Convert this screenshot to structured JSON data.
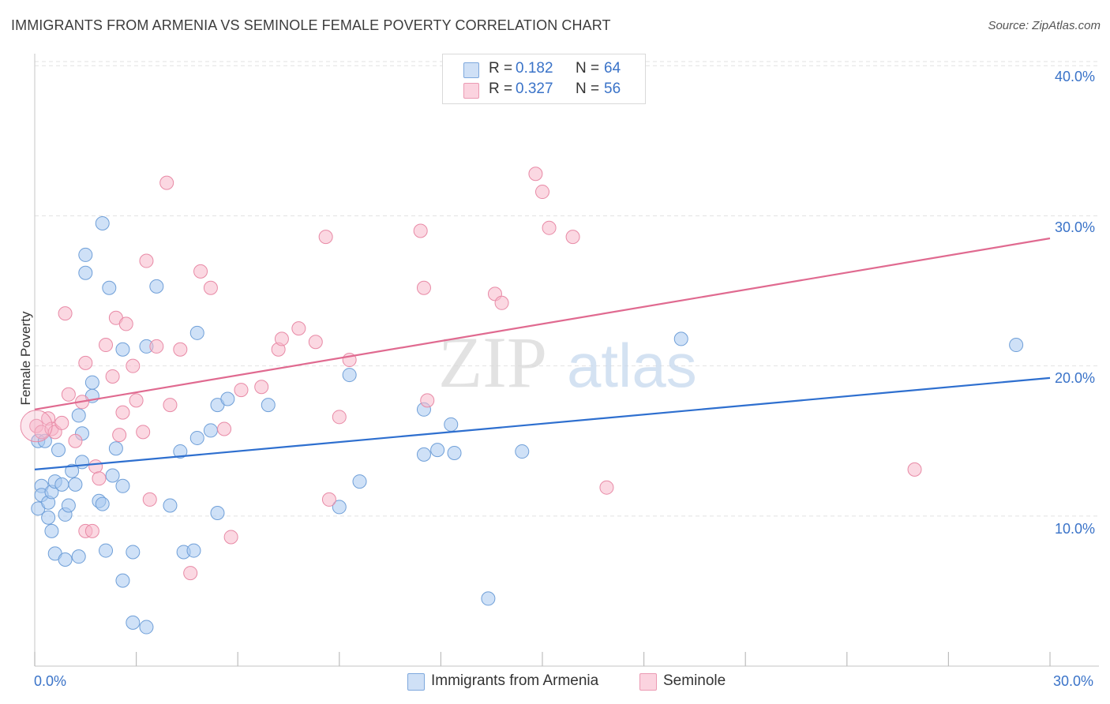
{
  "header": {
    "title": "IMMIGRANTS FROM ARMENIA VS SEMINOLE FEMALE POVERTY CORRELATION CHART",
    "source": "Source: ZipAtlas.com"
  },
  "watermark": {
    "part1": "ZIP",
    "part2": "atlas"
  },
  "legend": {
    "rows": [
      {
        "r_label": "R =",
        "r_value": "0.182",
        "n_label": "N =",
        "n_value": "64",
        "color": "#a8c8f0"
      },
      {
        "r_label": "R =",
        "r_value": "0.327",
        "n_label": "N =",
        "n_value": "56",
        "color": "#f7b8cb"
      }
    ]
  },
  "bottom_legend": [
    {
      "label": "Immigrants from Armenia",
      "color": "#a8c8f0"
    },
    {
      "label": "Seminole",
      "color": "#f7b8cb"
    }
  ],
  "axes": {
    "ylabel": "Female Poverty",
    "x_min_label": "0.0%",
    "x_max_label": "30.0%",
    "y_tick_labels": [
      "40.0%",
      "30.0%",
      "20.0%",
      "10.0%"
    ]
  },
  "chart_data": {
    "type": "scatter",
    "title": "IMMIGRANTS FROM ARMENIA VS SEMINOLE FEMALE POVERTY CORRELATION CHART",
    "xlabel": "",
    "ylabel": "Female Poverty",
    "xlim": [
      0,
      30
    ],
    "ylim": [
      0,
      40.7
    ],
    "y_ticks": [
      10,
      20,
      30,
      40
    ],
    "grid": true,
    "series": [
      {
        "name": "Immigrants from Armenia",
        "color": "#a8c8f0",
        "stroke": "#6f9fd8",
        "trend": {
          "x": [
            0,
            30
          ],
          "y": [
            13.1,
            19.2
          ],
          "color": "#2e6fcf"
        },
        "points": [
          [
            0.1,
            15.0
          ],
          [
            0.1,
            10.5
          ],
          [
            0.2,
            12.0
          ],
          [
            0.2,
            11.4
          ],
          [
            0.3,
            15.0
          ],
          [
            0.4,
            10.9
          ],
          [
            0.4,
            9.9
          ],
          [
            0.5,
            11.6
          ],
          [
            0.5,
            9.0
          ],
          [
            0.6,
            7.5
          ],
          [
            0.6,
            12.3
          ],
          [
            0.7,
            14.4
          ],
          [
            0.8,
            12.1
          ],
          [
            0.9,
            10.1
          ],
          [
            0.9,
            7.1
          ],
          [
            1.0,
            10.7
          ],
          [
            1.1,
            13.0
          ],
          [
            1.2,
            12.1
          ],
          [
            1.3,
            7.3
          ],
          [
            1.3,
            16.7
          ],
          [
            1.4,
            13.6
          ],
          [
            1.4,
            15.5
          ],
          [
            1.5,
            27.4
          ],
          [
            1.5,
            26.2
          ],
          [
            1.7,
            18.0
          ],
          [
            1.7,
            18.9
          ],
          [
            1.9,
            11.0
          ],
          [
            2.0,
            10.8
          ],
          [
            2.0,
            29.5
          ],
          [
            2.1,
            7.7
          ],
          [
            2.2,
            25.2
          ],
          [
            2.3,
            12.7
          ],
          [
            2.4,
            14.5
          ],
          [
            2.6,
            12.0
          ],
          [
            2.6,
            21.1
          ],
          [
            2.6,
            5.7
          ],
          [
            2.9,
            2.9
          ],
          [
            2.9,
            7.6
          ],
          [
            3.3,
            2.6
          ],
          [
            3.3,
            21.3
          ],
          [
            3.6,
            25.3
          ],
          [
            4.0,
            10.7
          ],
          [
            4.3,
            14.3
          ],
          [
            4.4,
            7.6
          ],
          [
            4.7,
            7.7
          ],
          [
            4.8,
            15.2
          ],
          [
            4.8,
            22.2
          ],
          [
            5.2,
            15.7
          ],
          [
            5.4,
            10.2
          ],
          [
            5.4,
            17.4
          ],
          [
            5.7,
            17.8
          ],
          [
            6.9,
            17.4
          ],
          [
            9.0,
            10.6
          ],
          [
            9.3,
            19.4
          ],
          [
            9.6,
            12.3
          ],
          [
            11.5,
            17.1
          ],
          [
            11.5,
            14.1
          ],
          [
            11.9,
            14.4
          ],
          [
            12.3,
            16.1
          ],
          [
            12.4,
            14.2
          ],
          [
            13.4,
            4.5
          ],
          [
            14.4,
            14.3
          ],
          [
            19.1,
            21.8
          ],
          [
            29.0,
            21.4
          ]
        ]
      },
      {
        "name": "Seminole",
        "color": "#f7b8cb",
        "stroke": "#e88aa6",
        "trend": {
          "x": [
            0,
            30
          ],
          "y": [
            17.1,
            28.5
          ],
          "color": "#e06a90"
        },
        "points": [
          [
            0.05,
            16.0
          ],
          [
            0.2,
            15.6
          ],
          [
            0.4,
            16.5
          ],
          [
            0.5,
            15.8
          ],
          [
            0.6,
            15.6
          ],
          [
            0.8,
            16.2
          ],
          [
            0.9,
            23.5
          ],
          [
            1.0,
            18.1
          ],
          [
            1.2,
            15.0
          ],
          [
            1.4,
            17.6
          ],
          [
            1.5,
            20.2
          ],
          [
            1.5,
            9.0
          ],
          [
            1.7,
            9.0
          ],
          [
            1.8,
            13.3
          ],
          [
            1.9,
            12.5
          ],
          [
            2.1,
            21.4
          ],
          [
            2.3,
            19.3
          ],
          [
            2.4,
            23.2
          ],
          [
            2.5,
            15.4
          ],
          [
            2.6,
            16.9
          ],
          [
            2.7,
            22.8
          ],
          [
            2.9,
            20.0
          ],
          [
            3.0,
            17.7
          ],
          [
            3.2,
            15.6
          ],
          [
            3.3,
            27.0
          ],
          [
            3.4,
            11.1
          ],
          [
            3.6,
            21.3
          ],
          [
            3.9,
            32.2
          ],
          [
            4.0,
            17.4
          ],
          [
            4.3,
            21.1
          ],
          [
            4.6,
            6.2
          ],
          [
            4.9,
            26.3
          ],
          [
            5.2,
            25.2
          ],
          [
            5.6,
            15.8
          ],
          [
            5.8,
            8.6
          ],
          [
            6.1,
            18.4
          ],
          [
            6.7,
            18.6
          ],
          [
            7.2,
            21.1
          ],
          [
            7.3,
            21.8
          ],
          [
            7.8,
            22.5
          ],
          [
            8.3,
            21.6
          ],
          [
            8.6,
            28.6
          ],
          [
            8.7,
            11.1
          ],
          [
            9.0,
            16.6
          ],
          [
            9.3,
            20.4
          ],
          [
            11.4,
            29.0
          ],
          [
            11.5,
            25.2
          ],
          [
            11.6,
            17.7
          ],
          [
            13.6,
            24.8
          ],
          [
            13.8,
            24.2
          ],
          [
            14.8,
            32.8
          ],
          [
            15.0,
            31.6
          ],
          [
            15.2,
            29.2
          ],
          [
            15.9,
            28.6
          ],
          [
            16.9,
            11.9
          ],
          [
            26.0,
            13.1
          ]
        ]
      }
    ]
  }
}
